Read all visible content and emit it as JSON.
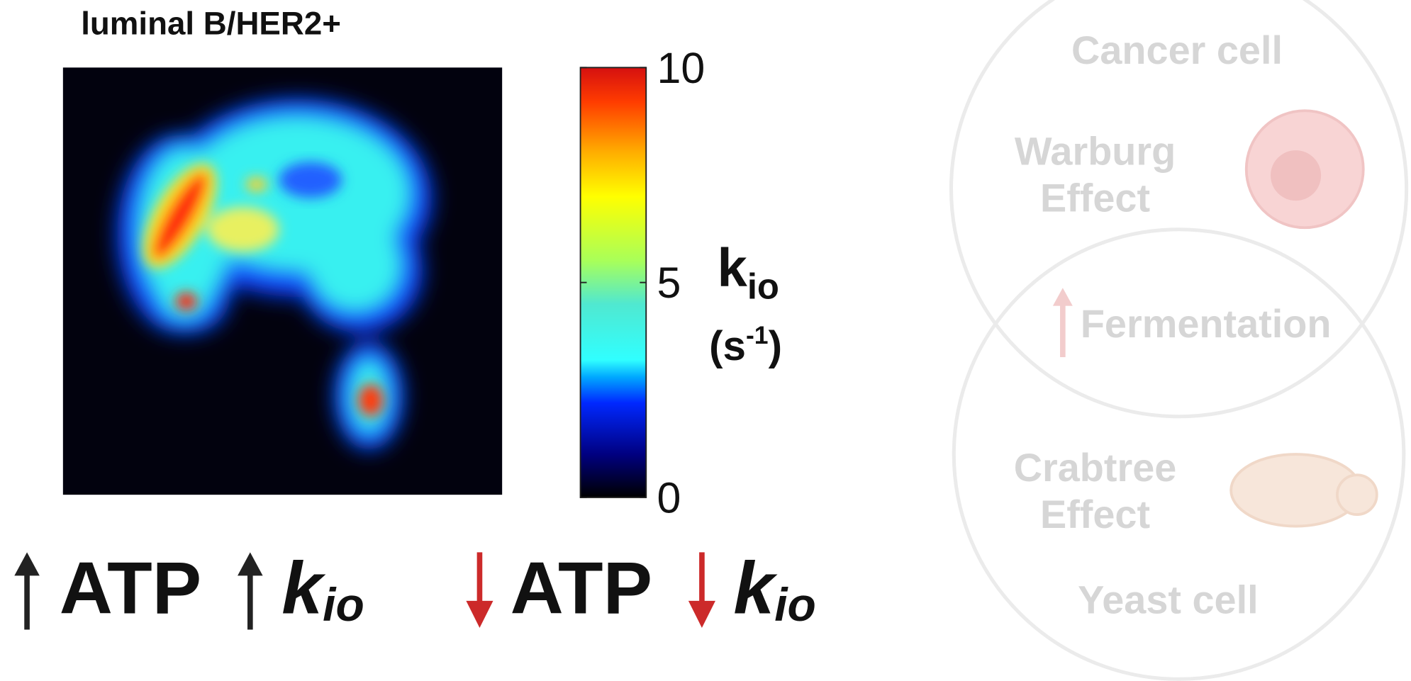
{
  "panel_title": "luminal B/HER2+",
  "colorbar": {
    "ticks": [
      0,
      5,
      10
    ],
    "range": [
      0,
      10
    ],
    "label": {
      "main": "k",
      "sub": "io"
    },
    "unit": {
      "open": "(s",
      "sup": "-1",
      "close": ")"
    }
  },
  "bottom": {
    "left": {
      "atp": "ATP",
      "k": "k",
      "sub": "io"
    },
    "right": {
      "atp": "ATP",
      "k": "k",
      "sub": "io"
    }
  },
  "venn": {
    "top_title": "Cancer cell",
    "top_effect": [
      "Warburg",
      "Effect"
    ],
    "overlap": "Fermentation",
    "bottom_effect": [
      "Crabtree",
      "Effect"
    ],
    "bottom_title": "Yeast cell"
  }
}
